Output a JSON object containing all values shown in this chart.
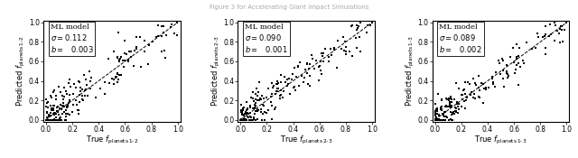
{
  "suptitle": "Figure 3 for Accelerating Giant Impact Simulations",
  "suptitle_fontsize": 5,
  "panels": [
    {
      "xlabel": "True $f_{\\mathrm{planets\\,1\\text{-}2}}$",
      "ylabel": "Predicted $f_{\\mathrm{planets\\,1\\text{-}2}}$",
      "sigma": 0.112,
      "b": 0.003,
      "legend_label": "ML model",
      "sigma_str": "\\sigma = 0.112",
      "b_str": "b = \\; 0.003"
    },
    {
      "xlabel": "True $f_{\\mathrm{planets\\,2\\text{-}3}}$",
      "ylabel": "Predicted $f_{\\mathrm{planets\\,2\\text{-}3}}$",
      "sigma": 0.09,
      "b": 0.001,
      "legend_label": "ML model",
      "sigma_str": "\\sigma = 0.090",
      "b_str": "b = \\quad 0.001"
    },
    {
      "xlabel": "True $f_{\\mathrm{planets\\,1\\text{-}3}}$",
      "ylabel": "Predicted $f_{\\mathrm{planets\\,1\\text{-}3}}$",
      "sigma": 0.089,
      "b": 0.002,
      "legend_label": "ML model",
      "sigma_str": "\\sigma = 0.089",
      "b_str": "b = \\quad 0.002"
    }
  ],
  "xlim": [
    -0.02,
    1.02
  ],
  "ylim": [
    -0.02,
    1.02
  ],
  "xticks": [
    0.0,
    0.2,
    0.4,
    0.6,
    0.8,
    1.0
  ],
  "yticks": [
    0.0,
    0.2,
    0.4,
    0.6,
    0.8,
    1.0
  ],
  "dot_color": "#000000",
  "dot_size": 4,
  "dot_marker": "s",
  "diag_color": "#000000",
  "n_points": 200,
  "seeds": [
    42,
    142,
    242
  ]
}
